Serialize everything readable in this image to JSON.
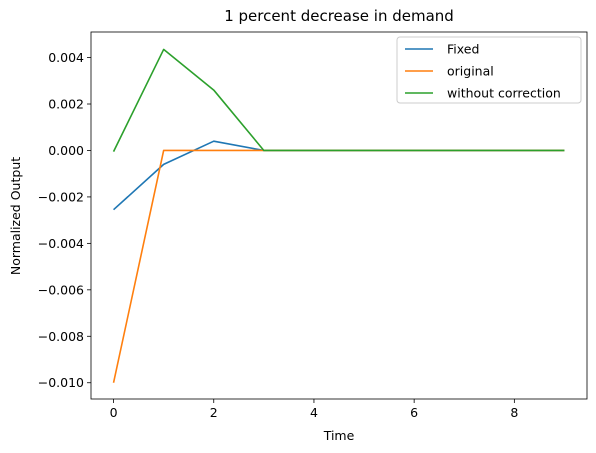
{
  "chart_data": {
    "type": "line",
    "title": "1 percent decrease in demand",
    "xlabel": "Time",
    "ylabel": "Normalized Output",
    "xlim": [
      -0.45,
      9.45
    ],
    "ylim": [
      -0.0107,
      0.0051
    ],
    "xticks": [
      0,
      2,
      4,
      6,
      8
    ],
    "xtick_labels": [
      "0",
      "2",
      "4",
      "6",
      "8"
    ],
    "yticks": [
      0.004,
      0.002,
      0.0,
      -0.002,
      -0.004,
      -0.006,
      -0.008,
      -0.01
    ],
    "ytick_labels": [
      "0.004",
      "0.002",
      "0.000",
      "−0.002",
      "−0.004",
      "−0.006",
      "−0.008",
      "−0.010"
    ],
    "grid": false,
    "legend_position": "top-right",
    "x": [
      0,
      1,
      2,
      3,
      4,
      5,
      6,
      7,
      8,
      9
    ],
    "series": [
      {
        "name": "Fixed",
        "color": "#1f77b4",
        "values": [
          -0.00255,
          -0.0006,
          0.0004,
          0.0,
          0.0,
          0.0,
          0.0,
          0.0,
          0.0,
          0.0
        ]
      },
      {
        "name": "original",
        "color": "#ff7f0e",
        "values": [
          -0.01,
          0.0,
          0.0,
          0.0,
          0.0,
          0.0,
          0.0,
          0.0,
          0.0,
          0.0
        ]
      },
      {
        "name": "without correction",
        "color": "#2ca02c",
        "values": [
          -5e-05,
          0.00435,
          0.0026,
          0.0,
          0.0,
          0.0,
          0.0,
          0.0,
          0.0,
          0.0
        ]
      }
    ]
  }
}
